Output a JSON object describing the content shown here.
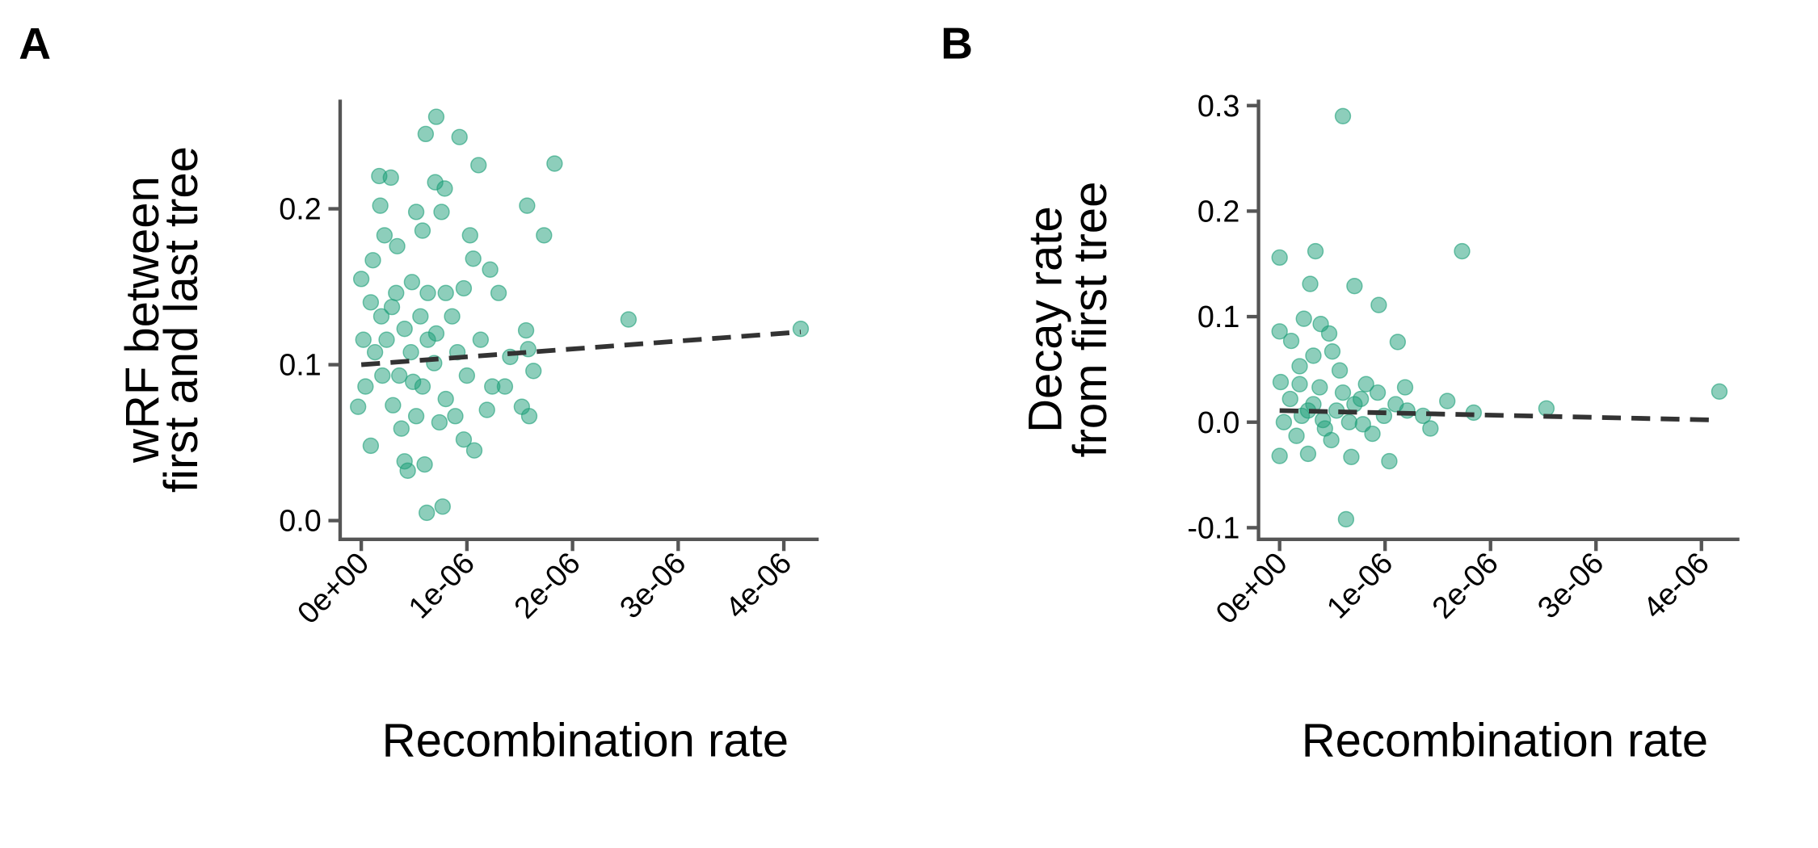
{
  "chart_data": [
    {
      "type": "scatter",
      "panel": "A",
      "x_label": "Recombination rate",
      "y_label": [
        "wRF between",
        "first and last tree"
      ],
      "color": "#1b9e77",
      "x": [
        7.1e-07,
        6.1e-07,
        9.3e-07,
        1.83e-06,
        1.11e-06,
        1.7e-07,
        2.8e-07,
        7e-07,
        7.9e-07,
        1.57e-06,
        1.8e-07,
        5.2e-07,
        7.6e-07,
        1.73e-06,
        1.03e-06,
        2.2e-07,
        5.8e-07,
        3.4e-07,
        1.1e-07,
        1.06e-06,
        1.22e-06,
        0,
        4.8e-07,
        9.7e-07,
        1.3e-06,
        9e-08,
        2.9e-07,
        6.3e-07,
        1.56e-06,
        2.53e-06,
        4.16e-06,
        1.58e-06,
        1.63e-06,
        1.41e-06,
        1.24e-06,
        1.59e-06,
        1.52e-06,
        1.07e-06,
        9e-08,
        4.1e-07,
        4.4e-07,
        6.2e-07,
        7.7e-07,
        6e-07,
        -3e-08,
        4e-08,
        1.3e-07,
        2.4e-07,
        3.6e-07,
        4.7e-07,
        5.8e-07,
        6.9e-07,
        8e-07,
        9.1e-07,
        4.1e-07,
        5.2e-07,
        6.3e-07,
        3e-07,
        1.9e-07,
        8.6e-07,
        7.4e-07,
        1e-06,
        1.13e-06,
        1.19e-06,
        3.8e-07,
        5.6e-07,
        2e-07,
        7.1e-07,
        4.9e-07,
        8.9e-07,
        2e-08,
        3.3e-07,
        8e-07,
        9.7e-07,
        1.36e-06
      ],
      "y": [
        0.259,
        0.248,
        0.246,
        0.229,
        0.228,
        0.221,
        0.22,
        0.217,
        0.213,
        0.202,
        0.202,
        0.198,
        0.198,
        0.183,
        0.183,
        0.183,
        0.186,
        0.176,
        0.167,
        0.168,
        0.161,
        0.155,
        0.153,
        0.149,
        0.146,
        0.14,
        0.137,
        0.146,
        0.122,
        0.129,
        0.123,
        0.11,
        0.096,
        0.105,
        0.086,
        0.067,
        0.073,
        0.045,
        0.048,
        0.038,
        0.032,
        0.005,
        0.009,
        0.036,
        0.073,
        0.086,
        0.108,
        0.116,
        0.093,
        0.108,
        0.086,
        0.101,
        0.078,
        0.108,
        0.123,
        0.067,
        0.116,
        0.074,
        0.131,
        0.131,
        0.063,
        0.093,
        0.116,
        0.071,
        0.059,
        0.131,
        0.093,
        0.12,
        0.089,
        0.067,
        0.116,
        0.146,
        0.146,
        0.052,
        0.086
      ],
      "trend": {
        "x": [
          0,
          4.16e-06
        ],
        "y": [
          0.1,
          0.121
        ]
      },
      "xlim": [
        -2e-07,
        4.33e-06
      ],
      "ylim": [
        -0.012,
        0.27
      ],
      "xticks": [
        {
          "value": 0,
          "label": "0e+00"
        },
        {
          "value": 1e-06,
          "label": "1e-06"
        },
        {
          "value": 2e-06,
          "label": "2e-06"
        },
        {
          "value": 3e-06,
          "label": "3e-06"
        },
        {
          "value": 4e-06,
          "label": "4e-06"
        }
      ],
      "yticks": [
        {
          "value": 0,
          "label": "0.0"
        },
        0.1,
        0.2
      ]
    },
    {
      "type": "scatter",
      "panel": "B",
      "x_label": "Recombination rate",
      "y_label": [
        "Decay rate",
        "from first tree"
      ],
      "color": "#1b9e77",
      "x": [
        6e-07,
        1.73e-06,
        3.4e-07,
        0,
        7.1e-07,
        2.9e-07,
        9.4e-07,
        0,
        2.3e-07,
        3.9e-07,
        1.12e-06,
        1.1e-07,
        4.7e-07,
        5e-07,
        3.2e-07,
        1.9e-07,
        5.7e-07,
        4.17e-06,
        2.53e-06,
        1.84e-06,
        1.59e-06,
        6.3e-07,
        0,
        1.04e-06,
        2.7e-07,
        6.8e-07,
        1.36e-06,
        1.43e-06,
        1.21e-06,
        1e-07,
        2.1e-07,
        3.2e-07,
        4.3e-07,
        5.4e-07,
        6.6e-07,
        7.7e-07,
        8.8e-07,
        9.9e-07,
        4e-08,
        1.6e-07,
        3.8e-07,
        4.9e-07,
        6e-07,
        8.2e-07,
        1.1e-06,
        2.7e-07,
        7.1e-07,
        4.1e-07,
        7.9e-07,
        9.3e-07,
        1.9e-07,
        1.19e-06,
        1e-08
      ],
      "y": [
        0.29,
        0.162,
        0.162,
        0.156,
        0.129,
        0.131,
        0.111,
        0.086,
        0.098,
        0.093,
        0.076,
        0.077,
        0.084,
        0.067,
        0.063,
        0.053,
        0.049,
        0.029,
        0.013,
        0.009,
        0.02,
        -0.092,
        -0.032,
        -0.037,
        -0.03,
        -0.033,
        0.006,
        -0.006,
        0.011,
        0.022,
        0.006,
        0.017,
        -0.006,
        0.011,
        0,
        0.022,
        -0.011,
        0.006,
        0,
        -0.013,
        0.033,
        -0.017,
        0.028,
        0.036,
        0.017,
        0.011,
        0.017,
        0.002,
        -0.002,
        0.028,
        0.036,
        0.033,
        0.038
      ],
      "trend": {
        "x": [
          0,
          4.16e-06
        ],
        "y": [
          0.011,
          0.002
        ]
      },
      "xlim": [
        -2e-07,
        4.36e-06
      ],
      "ylim": [
        -0.111,
        0.3056
      ],
      "xticks": [
        {
          "value": 0,
          "label": "0e+00"
        },
        {
          "value": 1e-06,
          "label": "1e-06"
        },
        {
          "value": 2e-06,
          "label": "2e-06"
        },
        {
          "value": 3e-06,
          "label": "3e-06"
        },
        {
          "value": 4e-06,
          "label": "4e-06"
        }
      ],
      "yticks": [
        -0.1,
        {
          "value": 0,
          "label": "0.0"
        },
        0.1,
        0.2,
        0.3
      ]
    }
  ]
}
